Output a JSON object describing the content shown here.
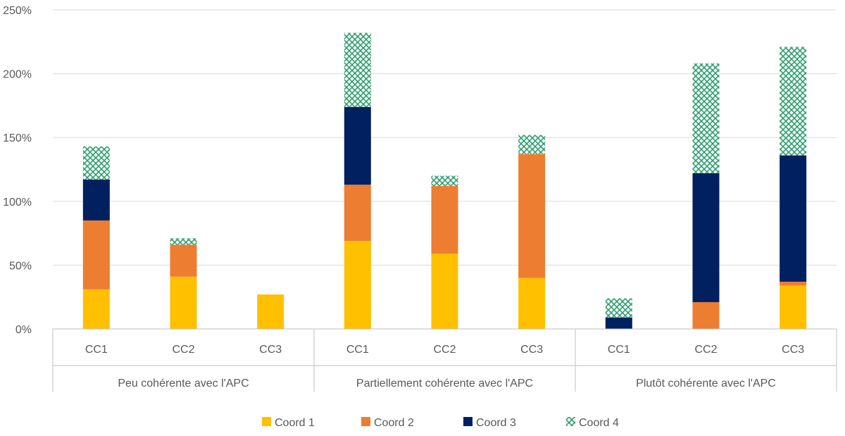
{
  "chart_data": {
    "type": "bar",
    "stacked": true,
    "y_axis": {
      "min": 0,
      "max": 250,
      "unit": "%",
      "ticks": [
        "0%",
        "50%",
        "100%",
        "150%",
        "200%",
        "250%"
      ],
      "tick_values": [
        0,
        50,
        100,
        150,
        200,
        250
      ]
    },
    "grid": true,
    "legend_position": "bottom",
    "groups": [
      {
        "label": "Peu cohérente avec l'APC",
        "categories": [
          "CC1",
          "CC2",
          "CC3"
        ]
      },
      {
        "label": "Partiellement cohérente avec l'APC",
        "categories": [
          "CC1",
          "CC2",
          "CC3"
        ]
      },
      {
        "label": "Plutôt cohérente avec l'APC",
        "categories": [
          "CC1",
          "CC2",
          "CC3"
        ]
      }
    ],
    "series": [
      {
        "name": "Coord 1",
        "color": "#FFC000",
        "pattern": "solid",
        "values": [
          31,
          41,
          27,
          69,
          59,
          40,
          0,
          0,
          34
        ]
      },
      {
        "name": "Coord 2",
        "color": "#ED7D31",
        "pattern": "solid",
        "values": [
          54,
          25,
          0,
          44,
          53,
          97,
          0,
          21,
          3
        ]
      },
      {
        "name": "Coord 3",
        "color": "#002060",
        "pattern": "solid",
        "values": [
          32,
          0,
          0,
          61,
          0,
          0,
          9,
          101,
          99
        ]
      },
      {
        "name": "Coord 4",
        "color": "#2E9E6F",
        "pattern": "crosshatch",
        "values": [
          26,
          5,
          0,
          58,
          8,
          15,
          15,
          86,
          85
        ]
      }
    ]
  }
}
